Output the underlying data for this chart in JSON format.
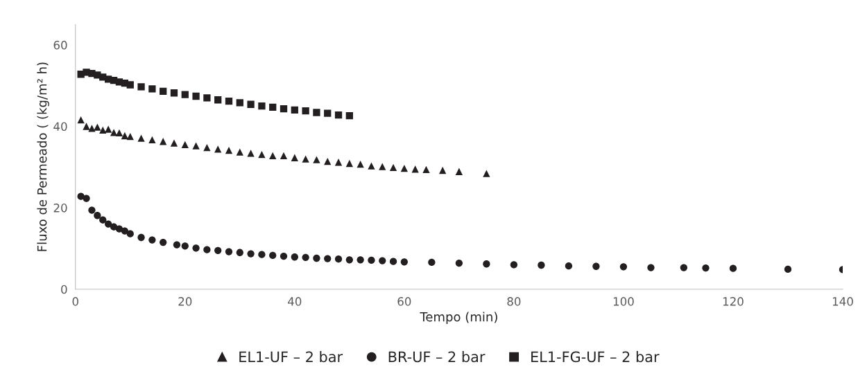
{
  "chart_data": {
    "type": "scatter",
    "xlabel": "Tempo (min)",
    "ylabel": "Fluxo de Permeado ( (kg/m² h)",
    "xlim": [
      0,
      140
    ],
    "xticks": [
      0,
      20,
      40,
      60,
      80,
      100,
      120,
      140
    ],
    "ylim": [
      0,
      65
    ],
    "yticks": [
      0,
      20,
      40,
      60
    ],
    "grid": false,
    "legend": "bottom",
    "series": [
      {
        "name": "EL1-UF – 2 bar",
        "color": "#231f20",
        "marker": "triangle",
        "x": [
          1,
          2,
          3,
          4,
          5,
          6,
          7,
          8,
          9,
          10,
          12,
          14,
          16,
          18,
          20,
          22,
          24,
          26,
          28,
          30,
          32,
          34,
          36,
          38,
          40,
          42,
          44,
          46,
          48,
          50,
          52,
          54,
          56,
          58,
          60,
          62,
          64,
          67,
          70,
          75
        ],
        "values": [
          41.6,
          40.0,
          39.5,
          39.8,
          39.1,
          39.3,
          38.5,
          38.4,
          37.7,
          37.5,
          37.1,
          36.7,
          36.3,
          35.9,
          35.5,
          35.2,
          34.8,
          34.4,
          34.1,
          33.7,
          33.4,
          33.1,
          32.8,
          32.8,
          32.3,
          32.0,
          31.8,
          31.4,
          31.2,
          30.9,
          30.7,
          30.3,
          30.1,
          29.9,
          29.7,
          29.5,
          29.4,
          29.2,
          28.9,
          28.4
        ]
      },
      {
        "name": "BR-UF – 2 bar",
        "color": "#231f20",
        "marker": "circle",
        "x": [
          1,
          2,
          3,
          4,
          5,
          6,
          7,
          8,
          9,
          10,
          12,
          14,
          16,
          18.5,
          20,
          22,
          24,
          26,
          28,
          30,
          32,
          34,
          36,
          38,
          40,
          42,
          44,
          46,
          48,
          50,
          52,
          54,
          56,
          58,
          60,
          65,
          70,
          75,
          80,
          85,
          90,
          95,
          100,
          105,
          111,
          115,
          120,
          130,
          140
        ],
        "values": [
          22.8,
          22.3,
          19.4,
          18.1,
          17.0,
          16.0,
          15.3,
          14.8,
          14.3,
          13.6,
          12.7,
          12.1,
          11.5,
          10.9,
          10.6,
          10.1,
          9.7,
          9.5,
          9.2,
          9.0,
          8.7,
          8.5,
          8.3,
          8.1,
          7.9,
          7.8,
          7.6,
          7.5,
          7.4,
          7.2,
          7.2,
          7.1,
          7.0,
          6.8,
          6.7,
          6.6,
          6.4,
          6.2,
          6.0,
          5.9,
          5.7,
          5.6,
          5.5,
          5.3,
          5.3,
          5.2,
          5.1,
          4.9,
          4.8
        ]
      },
      {
        "name": "EL1-FG-UF – 2 bar",
        "color": "#231f20",
        "marker": "square",
        "x": [
          1,
          2,
          3,
          4,
          5,
          6,
          7,
          8,
          9,
          10,
          12,
          14,
          16,
          18,
          20,
          22,
          24,
          26,
          28,
          30,
          32,
          34,
          36,
          38,
          40,
          42,
          44,
          46,
          48,
          50
        ],
        "values": [
          52.8,
          53.3,
          53.0,
          52.6,
          52.1,
          51.6,
          51.3,
          50.9,
          50.6,
          50.2,
          49.7,
          49.2,
          48.6,
          48.2,
          47.8,
          47.4,
          47.0,
          46.5,
          46.2,
          45.8,
          45.4,
          45.0,
          44.7,
          44.3,
          44.0,
          43.8,
          43.4,
          43.2,
          42.8,
          42.6
        ]
      }
    ]
  }
}
